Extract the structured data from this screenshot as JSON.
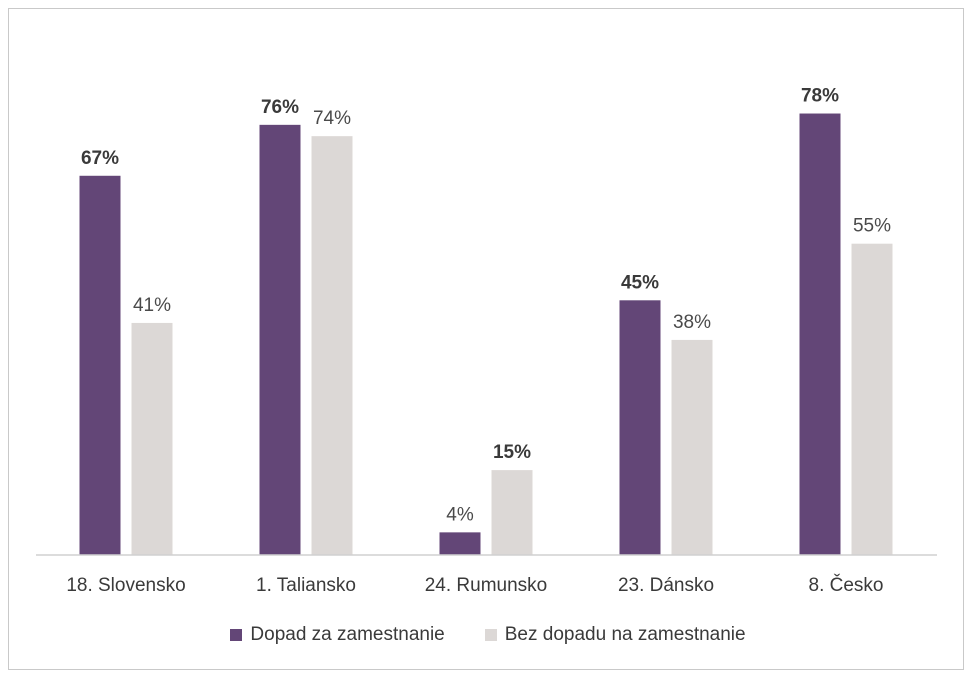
{
  "chart_data": {
    "type": "bar",
    "categories": [
      "18. Slovensko",
      "1. Taliansko",
      "24. Rumunsko",
      "23. Dánsko",
      "8. Česko"
    ],
    "series": [
      {
        "name": "Dopad za zamestnanie",
        "color": "#634677",
        "values": [
          67,
          76,
          4,
          45,
          78
        ],
        "labels": [
          "67%",
          "76%",
          "4%",
          "45%",
          "78%"
        ],
        "bold": [
          true,
          true,
          false,
          true,
          true
        ]
      },
      {
        "name": "Bez dopadu na zamestnanie",
        "color": "#dcd8d6",
        "values": [
          41,
          74,
          15,
          38,
          55
        ],
        "labels": [
          "41%",
          "74%",
          "15%",
          "38%",
          "55%"
        ],
        "bold": [
          false,
          false,
          true,
          false,
          false
        ]
      }
    ],
    "ylim": [
      0,
      100
    ],
    "grid": false,
    "legend_position": "bottom"
  }
}
